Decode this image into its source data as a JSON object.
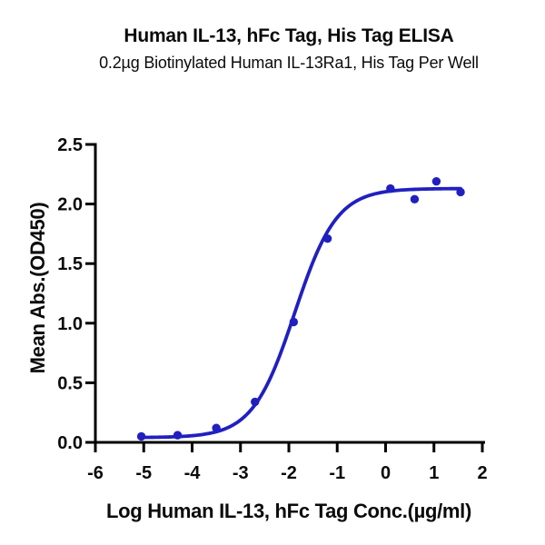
{
  "chart_data": {
    "type": "scatter",
    "curve_overlay": "sigmoidal-4PL-fit",
    "title": "Human IL-13, hFc Tag, His Tag ELISA",
    "subtitle": "0.2µg Biotinylated Human IL-13Ra1, His Tag Per Well",
    "xlabel": "Log Human IL-13, hFc Tag Conc.(µg/ml)",
    "ylabel": "Mean Abs.(OD450)",
    "xlim": [
      -6,
      2
    ],
    "ylim": [
      0,
      2.5
    ],
    "x_tick_values": [
      -6,
      -5,
      -4,
      -3,
      -2,
      -1,
      0,
      1,
      2
    ],
    "x_tick_labels": [
      "-6",
      "-5",
      "-4",
      "-3",
      "-2",
      "-1",
      "0",
      "1",
      "2"
    ],
    "y_tick_values": [
      0,
      0.5,
      1,
      1.5,
      2,
      2.5
    ],
    "y_tick_labels": [
      "0.0",
      "0.5",
      "1.0",
      "1.5",
      "2.0",
      "2.5"
    ],
    "grid": false,
    "legend": "none",
    "series": [
      {
        "marker": "circle",
        "color": "#2020C0",
        "points": [
          {
            "x": -5.05,
            "y": 0.05
          },
          {
            "x": -4.3,
            "y": 0.06
          },
          {
            "x": -3.5,
            "y": 0.12
          },
          {
            "x": -2.7,
            "y": 0.34
          },
          {
            "x": -1.9,
            "y": 1.01
          },
          {
            "x": -1.2,
            "y": 1.71
          },
          {
            "x": 0.1,
            "y": 2.13
          },
          {
            "x": 0.6,
            "y": 2.04
          },
          {
            "x": 1.05,
            "y": 2.19
          },
          {
            "x": 1.55,
            "y": 2.1
          }
        ],
        "fit": {
          "model": "4PL",
          "bottom": 0.04,
          "top": 2.13,
          "logEC50": -1.88,
          "hillslope": 1.0,
          "x_start": -5.05,
          "x_end": 1.55
        }
      }
    ],
    "colors": {
      "axis": "#000000",
      "text": "#0b0b0b",
      "background": "#ffffff"
    }
  }
}
